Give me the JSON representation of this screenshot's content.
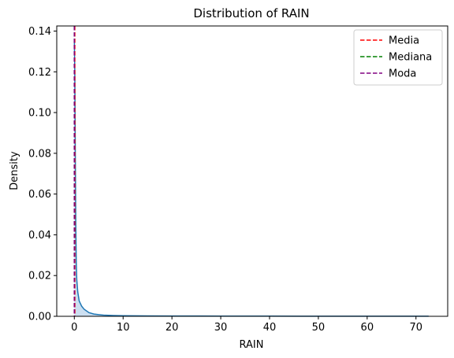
{
  "chart_data": {
    "type": "area",
    "title": "Distribution of RAIN",
    "xlabel": "RAIN",
    "ylabel": "Density",
    "xlim": [
      -3.6,
      76.5
    ],
    "ylim": [
      0,
      0.1425
    ],
    "x_ticks": [
      0,
      10,
      20,
      30,
      40,
      50,
      60,
      70
    ],
    "y_ticks": [
      0.0,
      0.02,
      0.04,
      0.06,
      0.08,
      0.1,
      0.12,
      0.14
    ],
    "series": [
      {
        "kind": "kde",
        "color": "#1f77b4",
        "fill": "#c6dbef",
        "x": [
          0.0,
          0.1,
          0.2,
          0.3,
          0.4,
          0.5,
          0.7,
          1.0,
          1.5,
          2.0,
          3.0,
          4.0,
          5.0,
          6.0,
          8.0,
          10.0,
          15.0,
          20.0,
          30.0,
          40.0,
          50.0,
          60.0,
          72.6
        ],
        "y": [
          0.136,
          0.12,
          0.08,
          0.045,
          0.026,
          0.018,
          0.012,
          0.0075,
          0.005,
          0.0035,
          0.0018,
          0.0011,
          0.0008,
          0.0006,
          0.0004,
          0.0003,
          0.0002,
          0.00015,
          0.0001,
          8e-05,
          6e-05,
          5e-05,
          3e-05
        ]
      }
    ],
    "vlines": [
      {
        "name": "Media",
        "x": 0.1,
        "color": "#ff0000"
      },
      {
        "name": "Mediana",
        "x": 0.0,
        "color": "#008000"
      },
      {
        "name": "Moda",
        "x": 0.0,
        "color": "#800080"
      }
    ],
    "legend": {
      "position": "top-right",
      "entries": [
        "Media",
        "Mediana",
        "Moda"
      ]
    },
    "grid": false
  }
}
